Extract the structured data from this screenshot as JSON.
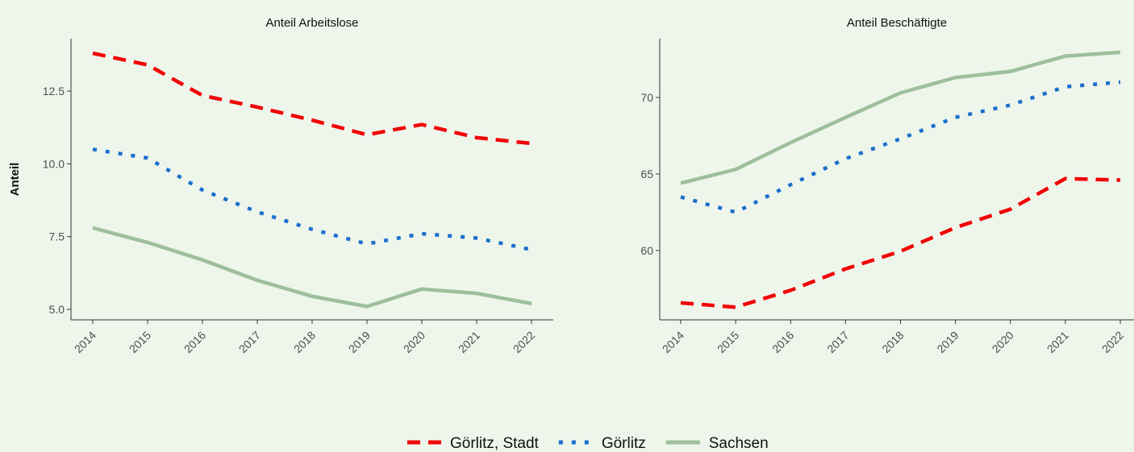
{
  "chart_data": [
    {
      "type": "line",
      "title": "Anteil Arbeitslose",
      "ylabel": "Anteil",
      "categories": [
        "2014",
        "2015",
        "2016",
        "2017",
        "2018",
        "2019",
        "2020",
        "2021",
        "2022"
      ],
      "ylim": [
        4.64,
        14.3
      ],
      "yticks": [
        {
          "value": 5,
          "label": "5.0"
        },
        7.5,
        {
          "value": 10,
          "label": "10.0"
        },
        12.5
      ],
      "series": [
        {
          "name": "Görlitz, Stadt",
          "color": "#f00000",
          "dash": "dashed",
          "values": [
            13.8,
            13.4,
            12.35,
            11.95,
            11.5,
            11.0,
            11.35,
            10.9,
            10.7
          ]
        },
        {
          "name": "Görlitz",
          "color": "#1a6fcc",
          "dash": "dotted",
          "values": [
            10.5,
            10.2,
            9.1,
            8.35,
            7.75,
            7.25,
            7.6,
            7.45,
            7.05
          ]
        },
        {
          "name": "Sachsen",
          "color": "#9dbf9b",
          "dash": "solid",
          "values": [
            7.8,
            7.3,
            6.7,
            6.0,
            5.45,
            5.1,
            5.7,
            5.55,
            5.2
          ]
        }
      ]
    },
    {
      "type": "line",
      "title": "Anteil Beschäftigte",
      "categories": [
        "2014",
        "2015",
        "2016",
        "2017",
        "2018",
        "2019",
        "2020",
        "2021",
        "2022"
      ],
      "ylim": [
        55.47,
        73.84
      ],
      "yticks": [
        60,
        65,
        70
      ],
      "series": [
        {
          "name": "Görlitz, Stadt",
          "color": "#f00000",
          "dash": "dashed",
          "values": [
            56.58,
            56.3,
            57.4,
            58.8,
            59.95,
            61.5,
            62.7,
            64.7,
            64.6
          ]
        },
        {
          "name": "Görlitz",
          "color": "#1a6fcc",
          "dash": "dotted",
          "values": [
            63.5,
            62.5,
            64.3,
            66.0,
            67.3,
            68.7,
            69.5,
            70.7,
            71.0
          ]
        },
        {
          "name": "Sachsen",
          "color": "#9dbf9b",
          "dash": "solid",
          "values": [
            64.4,
            65.3,
            67.05,
            68.7,
            70.3,
            71.3,
            71.7,
            72.7,
            72.95
          ]
        }
      ]
    }
  ]
}
